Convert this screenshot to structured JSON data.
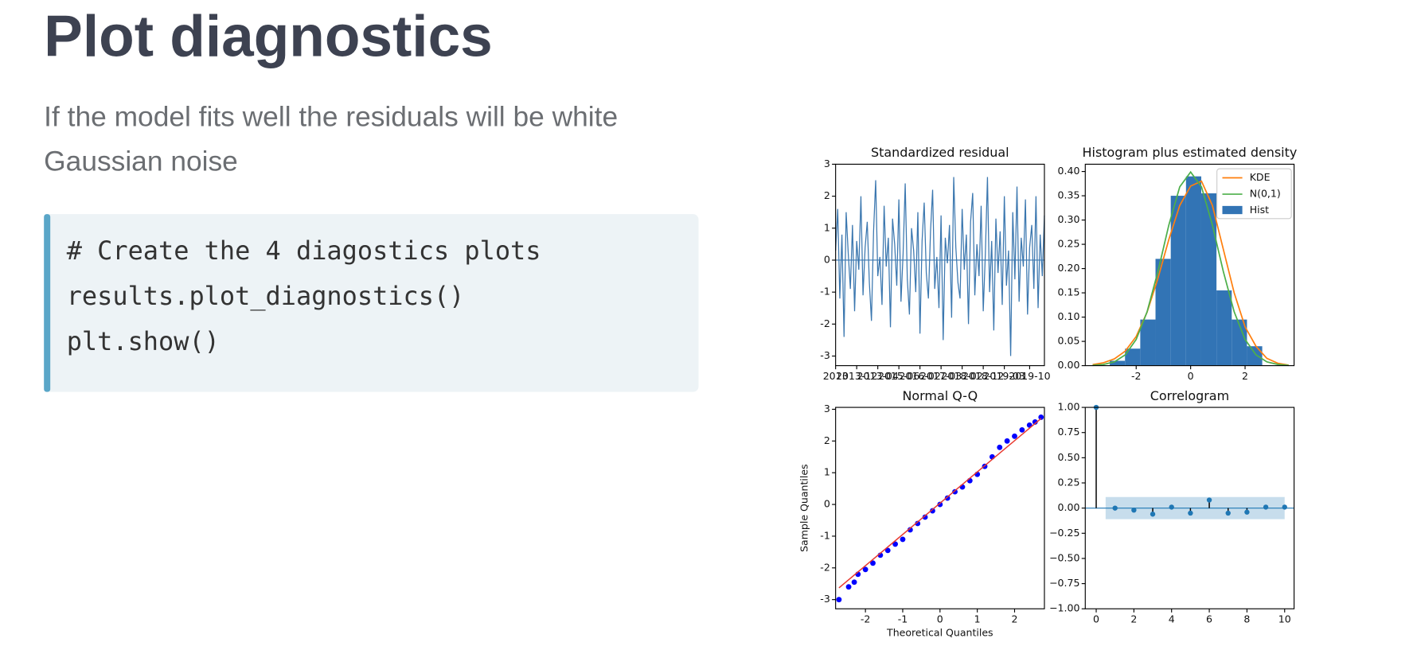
{
  "title": "Plot diagnostics",
  "subtitle_lines": [
    "If the model fits well the residuals will be white",
    "Gaussian noise"
  ],
  "code_lines": [
    "# Create the 4 diagostics plots",
    "results.plot_diagnostics()",
    "plt.show()"
  ],
  "chart_data": [
    {
      "type": "line",
      "title": "Standardized residual",
      "series": [
        {
          "color": "#3b77af",
          "values": [
            0.3,
            1.6,
            -1.2,
            0.8,
            -2.4,
            1.5,
            0.2,
            -0.9,
            1.1,
            -1.6,
            0.6,
            -0.3,
            2.0,
            -1.1,
            0.4,
            1.2,
            -0.7,
            -1.9,
            0.9,
            2.5,
            -0.5,
            0.1,
            -1.4,
            1.7,
            -0.2,
            0.7,
            -2.1,
            1.3,
            0.5,
            -0.8,
            1.9,
            -1.3,
            0.2,
            2.4,
            -0.6,
            -1.7,
            1.0,
            0.3,
            -1.0,
            1.5,
            -2.3,
            0.6,
            1.8,
            -0.4,
            -1.2,
            0.9,
            2.2,
            -0.9,
            0.1,
            -1.5,
            1.4,
            -2.5,
            0.7,
            -0.1,
            1.1,
            -1.8,
            2.6,
            0.4,
            -0.7,
            -1.2,
            1.6,
            -0.3,
            0.8,
            -2.0,
            1.2,
            2.1,
            -1.1,
            0.5,
            -0.5,
            1.7,
            -1.6,
            0.2,
            2.6,
            -1.0,
            0.6,
            -2.2,
            1.3,
            -0.4,
            0.9,
            -1.4,
            2.0,
            -0.8,
            0.3,
            -3.0,
            1.5,
            -0.6,
            2.3,
            -1.3,
            0.7,
            -0.2,
            1.9,
            -1.7,
            0.4,
            1.1,
            -0.9,
            2.0,
            -1.5,
            0.8,
            -0.5,
            1.4
          ]
        }
      ],
      "hline": 0,
      "xlim": [
        0,
        99
      ],
      "xticks": [
        {
          "value": 0,
          "label": "2013"
        },
        {
          "value": 10,
          "label": "2013-12"
        },
        {
          "value": 20,
          "label": "2013-04"
        },
        {
          "value": 30,
          "label": "2015-06"
        },
        {
          "value": 40,
          "label": "2016-02"
        },
        {
          "value": 50,
          "label": "2017-03"
        },
        {
          "value": 60,
          "label": "2018-02"
        },
        {
          "value": 70,
          "label": "2018-12"
        },
        {
          "value": 80,
          "label": "2019-03"
        },
        {
          "value": 92,
          "label": "2019-10"
        }
      ],
      "ylim": [
        -3.3,
        3
      ],
      "yticks": [
        -3,
        -2,
        -1,
        0,
        1,
        2,
        3
      ]
    },
    {
      "type": "histogram",
      "title": "Histogram plus estimated density",
      "bars": {
        "name": "Hist",
        "color": "#3274b5",
        "bins": [
          -2.97,
          -2.41,
          -1.85,
          -1.29,
          -0.73,
          -0.17,
          0.39,
          0.95,
          1.51,
          2.07,
          2.63
        ],
        "counts": [
          0.01,
          0.035,
          0.095,
          0.22,
          0.35,
          0.39,
          0.355,
          0.155,
          0.095,
          0.04
        ]
      },
      "x": [
        -3.6,
        -3.2,
        -2.8,
        -2.4,
        -2.0,
        -1.6,
        -1.2,
        -0.8,
        -0.4,
        0,
        0.4,
        0.8,
        1.2,
        1.6,
        2.0,
        2.4,
        2.8,
        3.2,
        3.6
      ],
      "series": [
        {
          "name": "KDE",
          "color": "#ff7f0e",
          "values": [
            0.002,
            0.006,
            0.014,
            0.03,
            0.06,
            0.11,
            0.18,
            0.26,
            0.33,
            0.37,
            0.38,
            0.33,
            0.24,
            0.15,
            0.08,
            0.04,
            0.015,
            0.005,
            0.001
          ]
        },
        {
          "name": "N(0,1)",
          "color": "#4daf4a",
          "values": [
            0.0006,
            0.0024,
            0.0079,
            0.0224,
            0.054,
            0.1109,
            0.1942,
            0.2897,
            0.3683,
            0.3989,
            0.3683,
            0.2897,
            0.1942,
            0.1109,
            0.054,
            0.0224,
            0.0079,
            0.0024,
            0.0006
          ]
        }
      ],
      "legend": "upper right",
      "xlim": [
        -3.87,
        3.8
      ],
      "xticks": [
        -2,
        0,
        2
      ],
      "ylim": [
        0,
        0.415
      ],
      "yticks": [
        {
          "value": 0,
          "label": "0.00"
        },
        {
          "value": 0.05,
          "label": "0.05"
        },
        {
          "value": 0.1,
          "label": "0.10"
        },
        {
          "value": 0.15,
          "label": "0.15"
        },
        {
          "value": 0.2,
          "label": "0.20"
        },
        {
          "value": 0.25,
          "label": "0.25"
        },
        {
          "value": 0.3,
          "label": "0.30"
        },
        {
          "value": 0.35,
          "label": "0.35"
        },
        {
          "value": 0.4,
          "label": "0.40"
        }
      ]
    },
    {
      "type": "scatter",
      "title": "Normal Q-Q",
      "x_label": "Theoretical Quantiles",
      "y_label": "Sample Quantiles",
      "points": {
        "color": "#0000ff",
        "x": [
          -2.71,
          -2.45,
          -2.3,
          -2.2,
          -2.0,
          -1.8,
          -1.6,
          -1.4,
          -1.2,
          -1.0,
          -0.8,
          -0.6,
          -0.4,
          -0.2,
          0,
          0.2,
          0.4,
          0.6,
          0.8,
          1.0,
          1.2,
          1.4,
          1.6,
          1.8,
          2.0,
          2.2,
          2.4,
          2.55,
          2.71
        ],
        "y": [
          -3.0,
          -2.6,
          -2.45,
          -2.2,
          -2.05,
          -1.85,
          -1.6,
          -1.45,
          -1.25,
          -1.1,
          -0.8,
          -0.6,
          -0.4,
          -0.2,
          0,
          0.2,
          0.4,
          0.55,
          0.75,
          0.95,
          1.2,
          1.5,
          1.8,
          2.0,
          2.15,
          2.35,
          2.5,
          2.6,
          2.75
        ]
      },
      "line": {
        "color": "#e8382f",
        "x": [
          -2.71,
          2.71
        ],
        "y": [
          -2.63,
          2.71
        ]
      },
      "xlim": [
        -2.8,
        2.8
      ],
      "xticks": [
        -2,
        -1,
        0,
        1,
        2
      ],
      "ylim": [
        -3.29,
        3.06
      ],
      "yticks": [
        -3,
        -2,
        -1,
        0,
        1,
        2,
        3
      ]
    },
    {
      "type": "stem",
      "title": "Correlogram",
      "color": "#1f77b4",
      "x": [
        0,
        1,
        2,
        3,
        4,
        5,
        6,
        7,
        8,
        9,
        10
      ],
      "values": [
        1,
        0,
        -0.02,
        -0.06,
        0.01,
        -0.05,
        0.08,
        -0.05,
        -0.04,
        0.01,
        0.01
      ],
      "confidence_band": 0.11,
      "xlim": [
        -0.58,
        10.5
      ],
      "xticks": [
        0,
        2,
        4,
        6,
        8,
        10
      ],
      "ylim": [
        -1,
        1
      ],
      "yticks": [
        {
          "value": -1,
          "label": "−1.00"
        },
        {
          "value": -0.75,
          "label": "−0.75"
        },
        {
          "value": -0.5,
          "label": "−0.50"
        },
        {
          "value": -0.25,
          "label": "−0.25"
        },
        {
          "value": 0,
          "label": "0.00"
        },
        {
          "value": 0.25,
          "label": "0.25"
        },
        {
          "value": 0.5,
          "label": "0.50"
        },
        {
          "value": 0.75,
          "label": "0.75"
        },
        {
          "value": 1,
          "label": "1.00"
        }
      ]
    }
  ]
}
